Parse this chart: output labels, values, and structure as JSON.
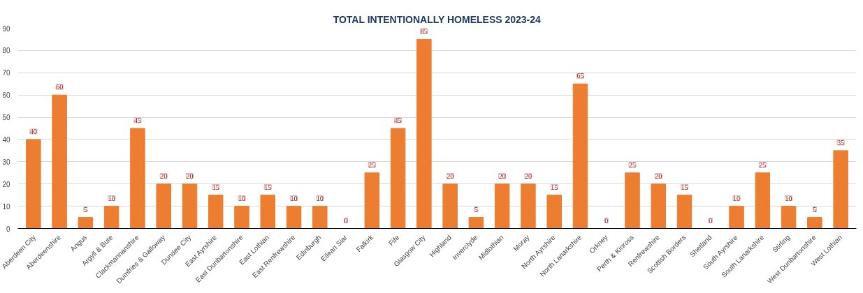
{
  "chart_data": {
    "type": "bar",
    "title": "TOTAL INTENTIONALLY HOMELESS 2023-24",
    "categories": [
      "Aberdeen City",
      "Aberdeenshire",
      "Angus",
      "Argyll & Bute",
      "Clackmannanshire",
      "Dumfries & Galloway",
      "Dundee City",
      "East Ayrshire",
      "East Dunbartonshire",
      "East Lothian",
      "East Renfrewshire",
      "Edinburgh",
      "Eilean Siar",
      "Falkirk",
      "Fife",
      "Glasgow City",
      "Highland",
      "Inverclyde",
      "Midlothian",
      "Moray",
      "North Ayrshire",
      "North Lanarkshire",
      "Orkney",
      "Perth & Kinross",
      "Renfrewshire",
      "Scottish Borders",
      "Shetland",
      "South Ayrshire",
      "South Lanarkshire",
      "Stirling",
      "West Dunbartonshire",
      "West Lothian"
    ],
    "values": [
      40,
      60,
      5,
      10,
      45,
      20,
      20,
      15,
      10,
      15,
      10,
      10,
      0,
      25,
      45,
      85,
      20,
      5,
      20,
      20,
      15,
      65,
      0,
      25,
      20,
      15,
      0,
      10,
      25,
      10,
      5,
      35
    ],
    "color": "#ed7d31",
    "ylim": [
      0,
      90
    ],
    "yticks": [
      0,
      10,
      20,
      30,
      40,
      50,
      60,
      70,
      80,
      90
    ],
    "grid": "y",
    "data_labels": true
  }
}
